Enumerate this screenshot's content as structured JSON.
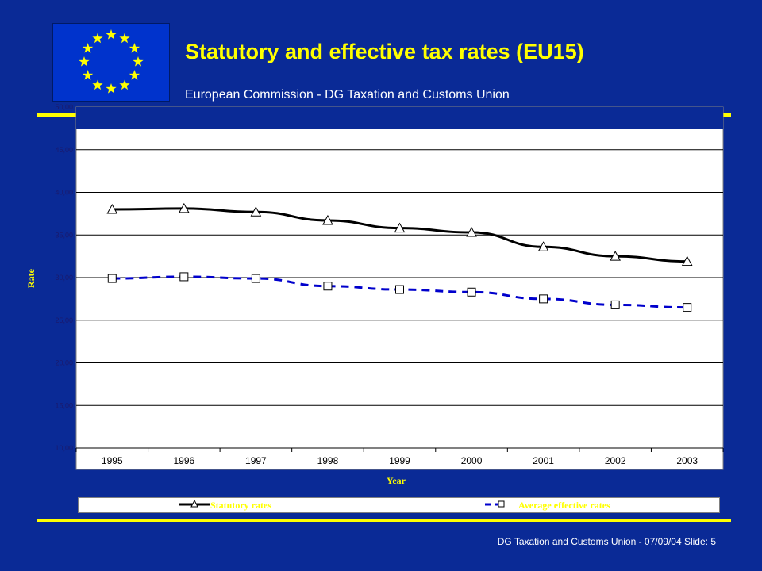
{
  "header": {
    "title": "Statutory and effective tax rates (EU15)",
    "subtitle": "European Commission - DG Taxation and Customs Union"
  },
  "footer": {
    "text": "DG Taxation and Customs Union  - 07/09/04 Slide: 5"
  },
  "logo": {
    "name": "eu-flag",
    "star_count": 12,
    "background_color": "#0033cc",
    "star_color": "#ffff00"
  },
  "colors": {
    "slide_background": "#0a2a96",
    "accent": "#ffff00",
    "statutory_line": "#000000",
    "effective_line": "#0000cc"
  },
  "chart_data": {
    "type": "line",
    "categories": [
      "1995",
      "1996",
      "1997",
      "1998",
      "1999",
      "2000",
      "2001",
      "2002",
      "2003"
    ],
    "series": [
      {
        "name": "Statutory rates",
        "values": [
          38.0,
          38.1,
          37.7,
          36.7,
          35.8,
          35.3,
          33.6,
          32.5,
          31.9
        ],
        "color": "#000000",
        "marker": "triangle",
        "line_style": "solid"
      },
      {
        "name": "Average effective rates",
        "values": [
          29.9,
          30.1,
          29.9,
          29.0,
          28.6,
          28.3,
          27.5,
          26.8,
          26.5
        ],
        "color": "#0000cc",
        "marker": "square",
        "line_style": "dashed"
      }
    ],
    "xlabel": "Year",
    "ylabel": "Rate",
    "ylim": [
      10,
      50
    ],
    "yticks": [
      "10,00",
      "15,00",
      "20,00",
      "25,00",
      "30,00",
      "35,00",
      "40,00",
      "45,00",
      "50,00"
    ],
    "grid": true,
    "legend_position": "bottom"
  }
}
